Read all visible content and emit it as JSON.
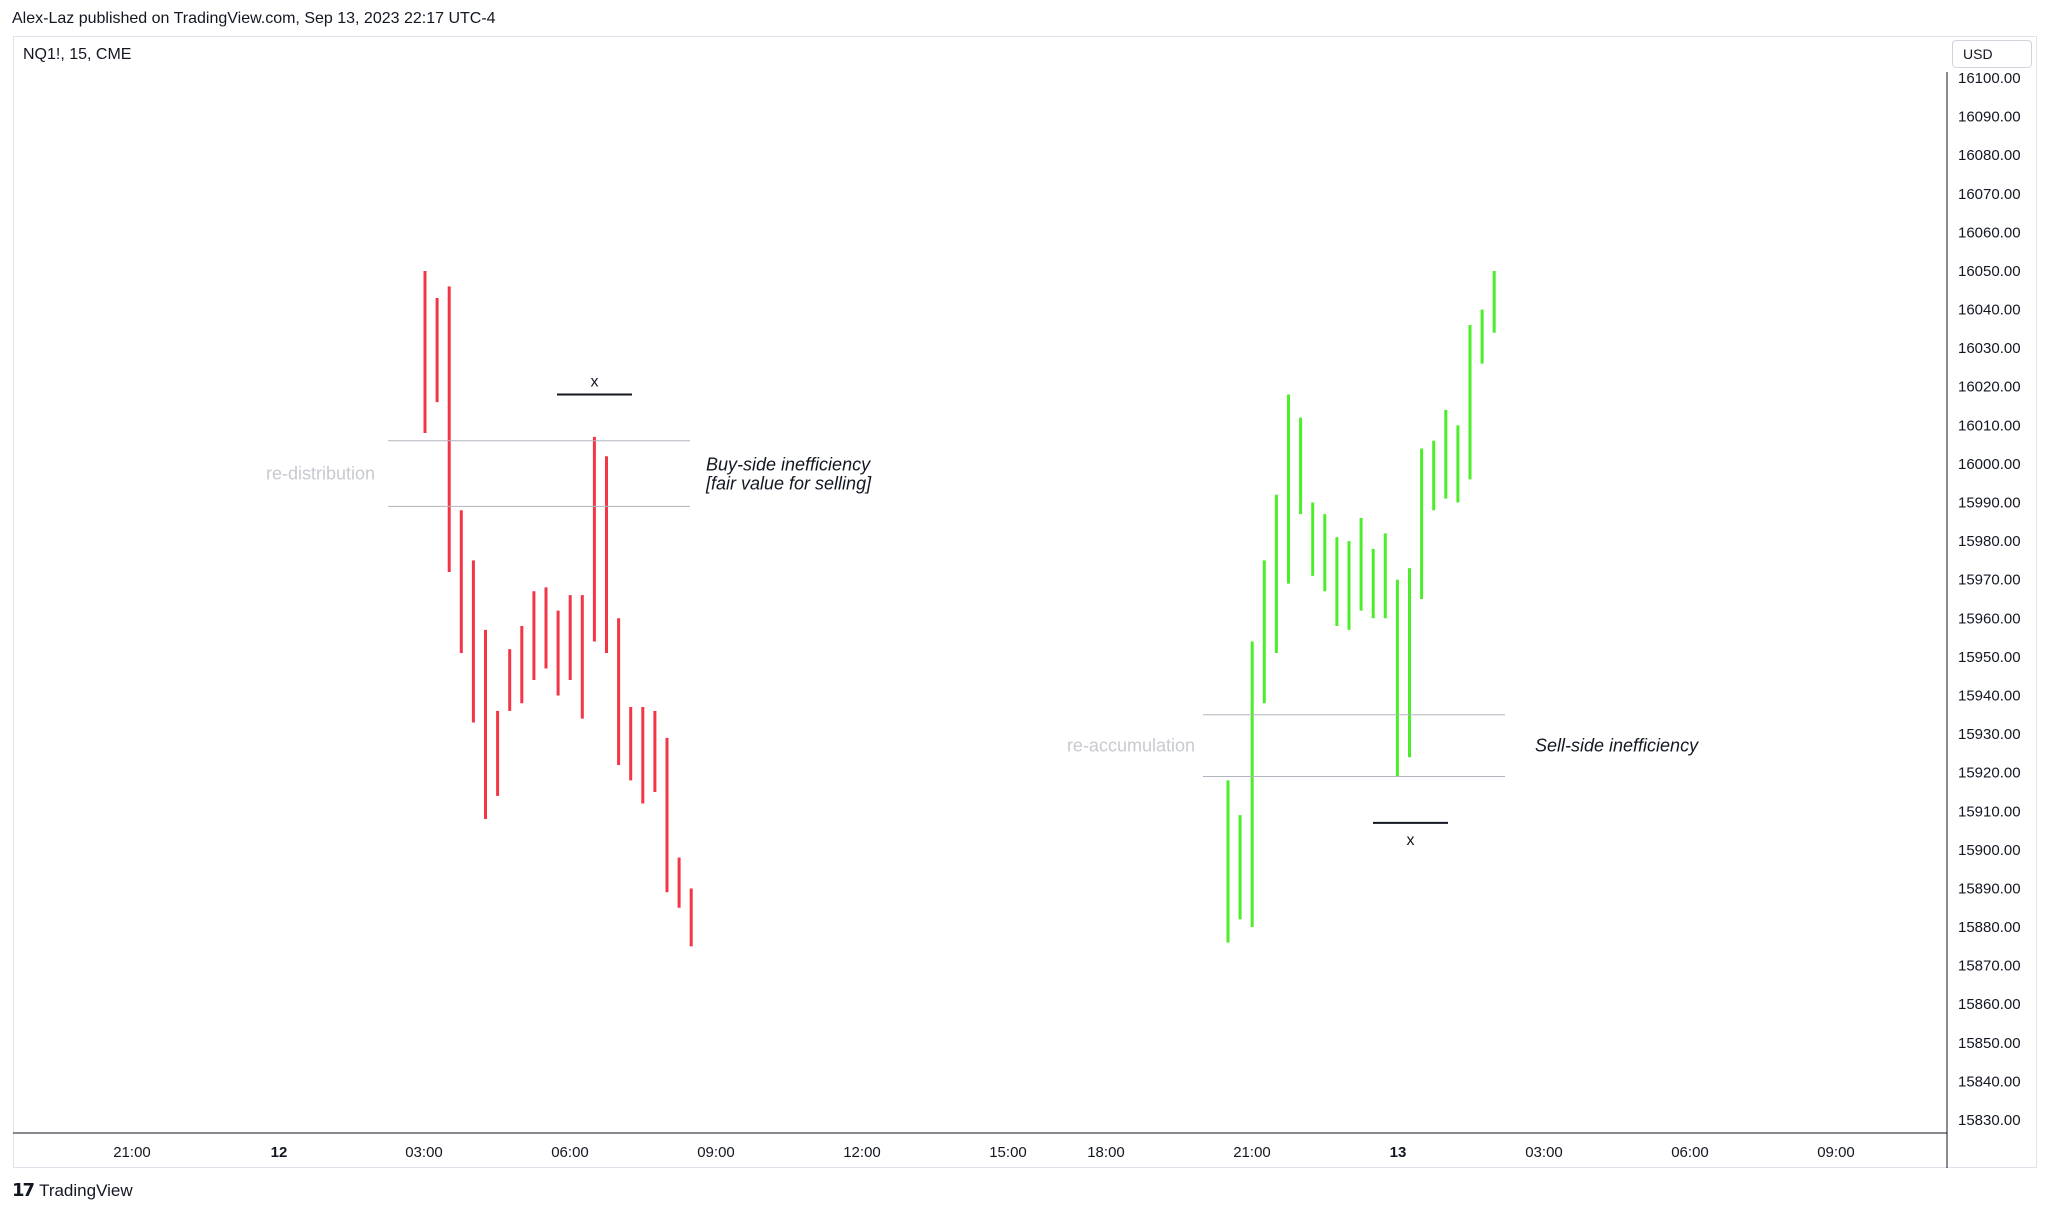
{
  "header": {
    "published": "Alex-Laz published on TradingView.com, Sep 13, 2023 22:17 UTC-4",
    "symbol": "NQ1!, 15, CME",
    "currency": "USD"
  },
  "footer": {
    "brand": "TradingView",
    "logo_icon": "tradingview-logo-icon"
  },
  "colors": {
    "down": "#f23645",
    "up": "#4cee2a",
    "zone": "#b2b5be",
    "grid_text": "#131722"
  },
  "chart_data": {
    "type": "bar",
    "ylim": [
      15824,
      16104
    ],
    "y_ticks": [
      16100,
      16090,
      16080,
      16070,
      16060,
      16050,
      16040,
      16030,
      16020,
      16010,
      16000,
      15990,
      15980,
      15970,
      15960,
      15950,
      15940,
      15930,
      15920,
      15910,
      15900,
      15890,
      15880,
      15870,
      15860,
      15850,
      15840,
      15830
    ],
    "x_labels": [
      {
        "label": "21:00",
        "bold": false
      },
      {
        "label": "12",
        "bold": true
      },
      {
        "label": "03:00",
        "bold": false
      },
      {
        "label": "06:00",
        "bold": false
      },
      {
        "label": "09:00",
        "bold": false
      },
      {
        "label": "12:00",
        "bold": false
      },
      {
        "label": "15:00",
        "bold": false
      },
      {
        "label": "18:00",
        "bold": false
      },
      {
        "label": "21:00",
        "bold": false
      },
      {
        "label": "13",
        "bold": true
      },
      {
        "label": "03:00",
        "bold": false
      },
      {
        "label": "06:00",
        "bold": false
      },
      {
        "label": "09:00",
        "bold": false
      }
    ],
    "series": [
      {
        "direction": "down",
        "bars": [
          [
            16050,
            16008
          ],
          [
            16043,
            16016
          ],
          [
            16046,
            15972
          ],
          [
            15988,
            15951
          ],
          [
            15975,
            15933
          ],
          [
            15957,
            15908
          ],
          [
            15936,
            15914
          ],
          [
            15952,
            15936
          ],
          [
            15958,
            15938
          ],
          [
            15967,
            15944
          ],
          [
            15968,
            15947
          ],
          [
            15962,
            15940
          ],
          [
            15966,
            15944
          ],
          [
            15966,
            15934
          ],
          [
            16007,
            15954
          ],
          [
            16002,
            15951
          ],
          [
            15960,
            15922
          ],
          [
            15937,
            15918
          ],
          [
            15937,
            15912
          ],
          [
            15936,
            15915
          ],
          [
            15929,
            15889
          ],
          [
            15898,
            15885
          ],
          [
            15890,
            15875
          ]
        ]
      },
      {
        "direction": "up",
        "bars": [
          [
            15918,
            15876
          ],
          [
            15909,
            15882
          ],
          [
            15954,
            15880
          ],
          [
            15975,
            15938
          ],
          [
            15992,
            15951
          ],
          [
            16018,
            15969
          ],
          [
            16012,
            15987
          ],
          [
            15990,
            15971
          ],
          [
            15987,
            15967
          ],
          [
            15981,
            15958
          ],
          [
            15980,
            15957
          ],
          [
            15986,
            15962
          ],
          [
            15978,
            15960
          ],
          [
            15982,
            15960
          ],
          [
            15970,
            15919
          ],
          [
            15973,
            15924
          ],
          [
            16004,
            15965
          ],
          [
            16006,
            15988
          ],
          [
            16014,
            15991
          ],
          [
            16010,
            15990
          ],
          [
            16036,
            15996
          ],
          [
            16040,
            16026
          ],
          [
            16050,
            16034
          ]
        ]
      }
    ],
    "zones": [
      {
        "label": "re-distribution",
        "top": 16006,
        "bottom": 15989,
        "note_line1": "Buy-side inefficiency",
        "note_line2": "[fair value for selling]"
      },
      {
        "label": "re-accumulation",
        "top": 15935,
        "bottom": 15919,
        "note_line1": "Sell-side inefficiency"
      }
    ],
    "markers": [
      {
        "label": "x",
        "level": 16018
      },
      {
        "label": "x",
        "level": 15907
      }
    ]
  }
}
